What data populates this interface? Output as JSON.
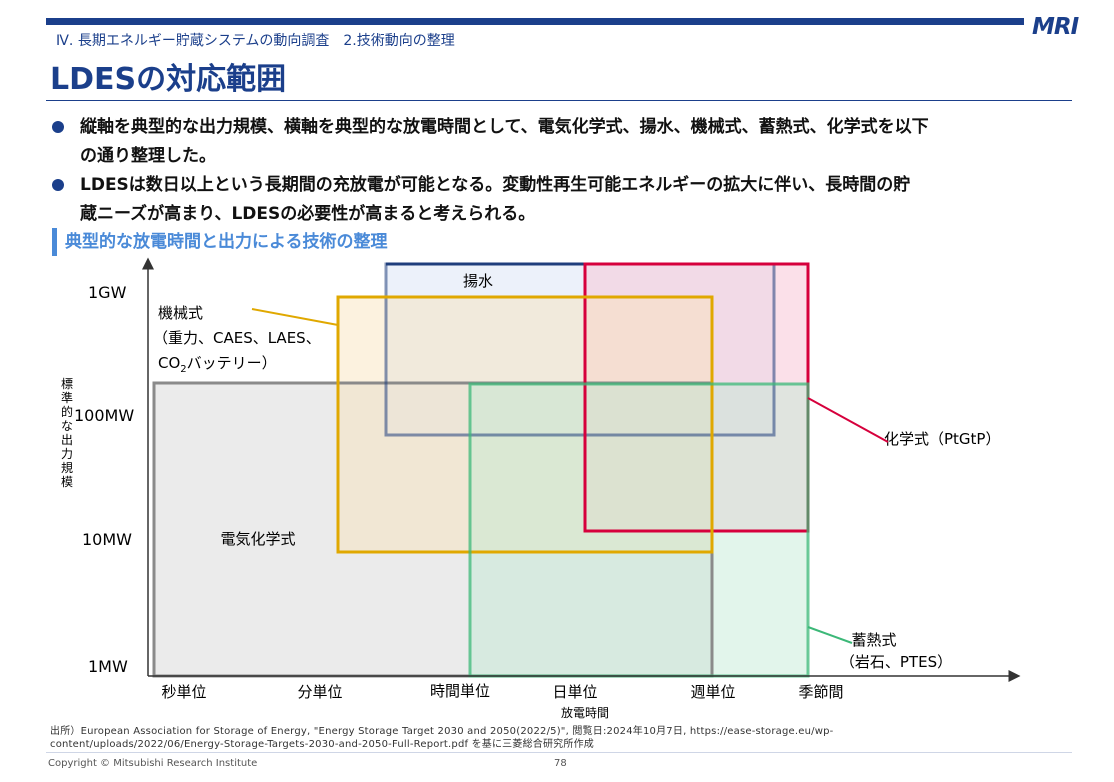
{
  "header": {
    "logo": "MRI",
    "breadcrumb": "Ⅳ. 長期エネルギー貯蔵システムの動向調査　2.技術動向の整理",
    "title": "LDESの対応範囲"
  },
  "bullets": [
    {
      "line1": "縦軸を典型的な出力規模、横軸を典型的な放電時間として、電気化学式、揚水、機械式、蓄熱式、化学式を以下",
      "line2": "の通り整理した。"
    },
    {
      "line1": "LDESは数日以上という長期間の充放電が可能となる。変動性再生可能エネルギーの拡大に伴い、長時間の貯",
      "line2": "蔵ニーズが高まり、LDESの必要性が高まると考えられる。"
    }
  ],
  "diagram": {
    "heading": "典型的な放電時間と出力による技術の整理",
    "y_axis_label": [
      "標",
      "準",
      "的",
      "な",
      "出",
      "力",
      "規",
      "模"
    ],
    "y_ticks": [
      "1GW",
      "100MW",
      "10MW",
      "1MW"
    ],
    "x_ticks": [
      "秒単位",
      "分単位",
      "時間単位",
      "日単位",
      "週単位",
      "季節間"
    ],
    "x_axis_label": "放電時間",
    "technologies": {
      "electrochemical": {
        "label": "電気化学式",
        "color": "#808080"
      },
      "pumped_hydro": {
        "label": "揚水",
        "color": "#1f3e7c"
      },
      "mechanical": {
        "label_line1": "機械式",
        "label_line2": "（重力、CAES、LAES、",
        "label_line3_main": "CO",
        "label_line3_sub": "2",
        "label_line3_rest": "バッテリー）",
        "color": "#e0a800"
      },
      "chemical": {
        "label": "化学式（PtGtP）",
        "color": "#d6003c"
      },
      "thermal": {
        "label_line1": "蓄熱式",
        "label_line2": "（岩石、PTES）",
        "color": "#3cb878"
      }
    }
  },
  "footer": {
    "source_line1": "出所）European Association for Storage of Energy, \"Energy Storage Target 2030 and 2050(2022/5)\", 閲覧日:2024年10月7日, https://ease-storage.eu/wp-",
    "source_line2": "content/uploads/2022/06/Energy-Storage-Targets-2030-and-2050-Full-Report.pdf を基に三菱総合研究所作成",
    "copyright": "Copyright © Mitsubishi Research Institute",
    "page_number": "78"
  }
}
